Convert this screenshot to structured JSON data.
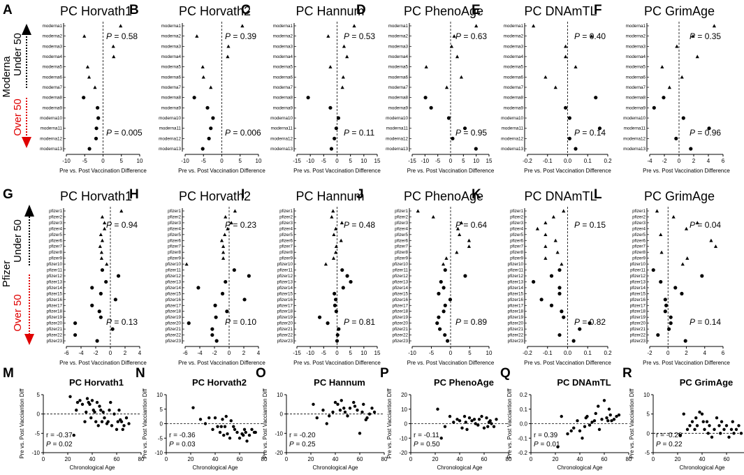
{
  "colors": {
    "over50": "#e00000",
    "under50": "#000000"
  },
  "rows": {
    "moderna": {
      "vaccine": "Moderna",
      "under": "Under 50",
      "over": "Over 50"
    },
    "pfizer": {
      "vaccine": "Pfizer",
      "under": "Under 50",
      "over": "Over 50"
    }
  },
  "xlabel": "Pre vs. Post Vaccination Difference",
  "scatter_xlabel": "Chronological Age",
  "scatter_ylabel": "Pre vs. Post Vacciantion Diff",
  "moderna_categories": [
    "moderna1",
    "moderna2",
    "moderna3",
    "moderna4",
    "moderna5",
    "moderna6",
    "moderna7",
    "moderna8",
    "moderna9",
    "moderna10",
    "moderna11",
    "moderna12",
    "moderna13"
  ],
  "pfizer_categories": [
    "pfizer1",
    "pfizer2",
    "pfizer3",
    "pfizer4",
    "pfizer5",
    "pfizer6",
    "pfizer7",
    "pfizer8",
    "pfizer9",
    "pfizer10",
    "pfizer11",
    "pfizer12",
    "pfizer13",
    "pfizer14",
    "pfizer15",
    "pfizer16",
    "pfizer17",
    "pfizer18",
    "pfizer19",
    "pfizer20",
    "pfizer21",
    "pfizer22",
    "pfizer23"
  ],
  "chart_data": [
    {
      "type": "scatter",
      "panel": "A",
      "title": "PC Horvath1",
      "cohort": "moderna",
      "xlim": [
        -10,
        10
      ],
      "ticks": [
        -10,
        -5,
        0,
        5,
        10
      ],
      "values": [
        4.8,
        -5.1,
        2.8,
        2.9,
        -4.2,
        -3.8,
        -2.2,
        -5.3,
        -1.5,
        -1.3,
        -1.8,
        -1.9,
        -3.7
      ],
      "p_under": "= 0.58",
      "p_over": "= 0.005"
    },
    {
      "type": "scatter",
      "panel": "B",
      "title": "PC Horvath2",
      "cohort": "moderna",
      "xlim": [
        -10,
        10
      ],
      "ticks": [
        -10,
        -5,
        0,
        5,
        10
      ],
      "values": [
        5.6,
        -6.8,
        1.8,
        1.6,
        -5.2,
        -5,
        -3,
        -7.5,
        -3.9,
        -2.4,
        -3,
        -3.5,
        -5.2
      ],
      "p_under": "= 0.39",
      "p_over": "= 0.006"
    },
    {
      "type": "scatter",
      "panel": "C",
      "title": "PC Hannum",
      "cohort": "moderna",
      "xlim": [
        -15,
        15
      ],
      "ticks": [
        -15,
        -10,
        -5,
        0,
        5,
        10,
        15
      ],
      "values": [
        6.4,
        -3.3,
        2.6,
        3.7,
        -2.5,
        2.3,
        2,
        -10.8,
        -2.5,
        0.5,
        -0.3,
        -1,
        -2.1
      ],
      "p_under": "= 0.53",
      "p_over": "= 0.11"
    },
    {
      "type": "scatter",
      "panel": "D",
      "title": "PC PhenoAge",
      "cohort": "moderna",
      "xlim": [
        -15,
        15
      ],
      "ticks": [
        -15,
        -10,
        -5,
        0,
        5,
        10,
        15
      ],
      "values": [
        10,
        1.4,
        0.4,
        2.6,
        -9.5,
        4.2,
        -1.5,
        -9.8,
        -7.6,
        -0.7,
        5.6,
        0.8,
        9.9
      ],
      "p_under": "= 0.63",
      "p_over": "= 0.95"
    },
    {
      "type": "scatter",
      "panel": "E",
      "title": "PC DNAmTL",
      "cohort": "moderna",
      "xlim": [
        -0.2,
        0.2
      ],
      "ticks": [
        -0.2,
        -0.1,
        0.0,
        0.1,
        0.2
      ],
      "values": [
        -0.17,
        0.12,
        -0.01,
        -0.01,
        0.04,
        -0.11,
        -0.06,
        0.14,
        -0.01,
        0.01,
        0.16,
        0.01,
        0.04
      ],
      "p_under": "= 0.40",
      "p_over": "= 0.14"
    },
    {
      "type": "scatter",
      "panel": "F",
      "title": "PC GrimAge",
      "cohort": "moderna",
      "xlim": [
        -4,
        6
      ],
      "ticks": [
        -4,
        -2,
        0,
        2,
        4,
        6
      ],
      "values": [
        4.8,
        1.9,
        -0.3,
        2.5,
        -2.3,
        0.4,
        -1.3,
        -2.1,
        -3.4,
        0.6,
        4.1,
        -0.4,
        1.6
      ],
      "p_under": "= 0.35",
      "p_over": "= 0.96"
    },
    {
      "type": "scatter",
      "panel": "G",
      "title": "PC Horvath1",
      "cohort": "pfizer",
      "xlim": [
        -6,
        4
      ],
      "ticks": [
        -6,
        -4,
        -2,
        0,
        2,
        4
      ],
      "values": [
        1.5,
        -1.1,
        -0.8,
        -0.8,
        -1.3,
        -1.1,
        -1.4,
        -1.2,
        -1.2,
        -0.5,
        -1.1,
        1.1,
        -0.6,
        -2.5,
        -1.3,
        0.7,
        -2.5,
        -1.5,
        -1.3,
        -4.8,
        0.3,
        -4.8,
        -1.8
      ],
      "p_under": "= 0.94",
      "p_over": "= 0.13"
    },
    {
      "type": "scatter",
      "panel": "H",
      "title": "PC Horvath2",
      "cohort": "pfizer",
      "xlim": [
        -6,
        4
      ],
      "ticks": [
        -6,
        -4,
        -2,
        0,
        2,
        4
      ],
      "values": [
        0.8,
        -0.5,
        0.3,
        -0.2,
        -0.6,
        -1,
        -0.8,
        -0.8,
        -0.8,
        -5.8,
        0.7,
        2.7,
        -0.5,
        -4.2,
        -0.9,
        2.1,
        -1.9,
        -0.3,
        -1.8,
        -5.5,
        -2.3,
        -2.3,
        -1.7
      ],
      "p_under": "= 0.23",
      "p_over": "= 0.10"
    },
    {
      "type": "scatter",
      "panel": "I",
      "title": "PC Hannum",
      "cohort": "pfizer",
      "xlim": [
        -15,
        15
      ],
      "ticks": [
        -15,
        -10,
        -5,
        0,
        5,
        10,
        15
      ],
      "values": [
        -1.5,
        -2,
        1.8,
        -0.5,
        -1.2,
        1.5,
        -0.3,
        -0.5,
        -1.3,
        -4.2,
        1.9,
        3.8,
        5.1,
        2.3,
        -1,
        -0.5,
        -0.8,
        -0.3,
        -6.5,
        -3.5,
        0.6,
        0.2,
        0
      ],
      "p_under": "= 0.48",
      "p_over": "= 0.81"
    },
    {
      "type": "scatter",
      "panel": "J",
      "title": "PC PhenoAge",
      "cohort": "pfizer",
      "xlim": [
        -10,
        10
      ],
      "ticks": [
        -10,
        -5,
        0,
        5,
        10
      ],
      "values": [
        -8.5,
        -4.5,
        2.8,
        1.9,
        2.3,
        4.8,
        4.8,
        1.6,
        -1.1,
        -1.9,
        -1.4,
        3.8,
        -2.5,
        -1.8,
        -3.1,
        -0.1,
        -1.4,
        -1.8,
        -3.1,
        -3.5,
        -2.8,
        -1.5,
        -0.8
      ],
      "p_under": "= 0.64",
      "p_over": "= 0.89"
    },
    {
      "type": "scatter",
      "panel": "K",
      "title": "PC DNAmTL",
      "cohort": "pfizer",
      "xlim": [
        -0.2,
        0.2
      ],
      "ticks": [
        -0.2,
        -0.1,
        0.0,
        0.1,
        0.2
      ],
      "values": [
        -0.02,
        -0.07,
        -0.11,
        -0.15,
        -0.11,
        -0.06,
        -0.11,
        -0.05,
        -0.11,
        -0.03,
        -0.04,
        -0.08,
        -0.17,
        -0.04,
        -0.04,
        -0.13,
        -0.08,
        -0.03,
        -0.02,
        0.11,
        0.06,
        -0.04,
        0.03
      ],
      "p_under": "= 0.15",
      "p_over": "= 0.82"
    },
    {
      "type": "scatter",
      "panel": "L",
      "title": "PC GrimAge",
      "cohort": "pfizer",
      "xlim": [
        -2,
        6
      ],
      "ticks": [
        -2,
        0,
        2,
        4,
        6
      ],
      "values": [
        -1.2,
        0.6,
        3.2,
        2,
        -0.8,
        4.7,
        5.2,
        -0.7,
        2.1,
        1.6,
        -1.6,
        3.7,
        -0.8,
        0.8,
        1.5,
        -0.3,
        -0.2,
        -0.3,
        0.3,
        0.3,
        0.1,
        -1.1,
        1.9
      ],
      "p_under": "= 0.04",
      "p_over": "= 0.14"
    },
    {
      "type": "scatter",
      "panel": "M",
      "title": "PC Horvath1",
      "xlim": [
        0,
        80
      ],
      "ylim": [
        -10,
        5
      ],
      "xticks": [
        0,
        20,
        40,
        60,
        80
      ],
      "yticks": [
        -10,
        -5,
        0,
        5
      ],
      "r": "r = -0.37",
      "p": "= 0.02",
      "x": [
        22,
        25,
        27,
        28,
        30,
        32,
        34,
        35,
        36,
        37,
        38,
        39,
        40,
        41,
        42,
        43,
        44,
        45,
        46,
        47,
        48,
        49,
        50,
        52,
        53,
        54,
        55,
        56,
        58,
        60,
        61,
        62,
        63,
        64,
        65,
        66,
        68,
        70
      ],
      "y": [
        4.5,
        -5.5,
        1,
        3,
        3.5,
        2.5,
        -2,
        0.5,
        4,
        3,
        2.5,
        -1,
        3.5,
        1,
        0.5,
        -2,
        3,
        -3,
        2,
        1,
        -2,
        0.5,
        -1,
        -2.5,
        -2,
        1,
        3,
        -3,
        0,
        -4,
        -2,
        1,
        -1.5,
        -2,
        -4,
        -3,
        -1,
        -2.5
      ]
    },
    {
      "type": "scatter",
      "panel": "N",
      "title": "PC Horvath2",
      "xlim": [
        0,
        80
      ],
      "ylim": [
        -10,
        10
      ],
      "xticks": [
        0,
        20,
        40,
        60,
        80
      ],
      "yticks": [
        -10,
        -5,
        0,
        5,
        10
      ],
      "r": "r = -0.36",
      "p": "= 0.03",
      "x": [
        22,
        28,
        32,
        35,
        38,
        40,
        42,
        44,
        45,
        46,
        47,
        48,
        49,
        50,
        52,
        53,
        55,
        56,
        58,
        60,
        62,
        63,
        64,
        65,
        66,
        68,
        70,
        72,
        73
      ],
      "y": [
        5.5,
        1.5,
        0,
        2,
        -2,
        2,
        -1,
        -3,
        -1,
        1.5,
        -4,
        -1,
        2.5,
        -3.5,
        -5,
        1,
        -1,
        -2,
        -3,
        -5,
        -3.5,
        -4,
        -2,
        -3,
        -6,
        -4,
        -2,
        -3,
        -3
      ]
    },
    {
      "type": "scatter",
      "panel": "O",
      "title": "PC Hannum",
      "xlim": [
        0,
        80
      ],
      "ylim": [
        -20,
        10
      ],
      "xticks": [
        0,
        20,
        40,
        60,
        80
      ],
      "yticks": [
        -20,
        -10,
        0,
        10
      ],
      "r": "r = -0.20",
      "p": "= 0.25",
      "x": [
        22,
        25,
        30,
        33,
        35,
        38,
        40,
        42,
        44,
        45,
        47,
        48,
        50,
        52,
        55,
        56,
        58,
        60,
        62,
        63,
        65,
        66,
        68,
        70,
        72
      ],
      "y": [
        5,
        -2,
        2,
        -5,
        -1,
        1,
        6,
        5,
        2,
        7,
        3,
        1,
        -1,
        3,
        6,
        4,
        2,
        -10,
        1,
        5,
        -3,
        -2,
        0,
        3,
        1
      ]
    },
    {
      "type": "scatter",
      "panel": "P",
      "title": "PC PhenoAge",
      "xlim": [
        0,
        80
      ],
      "ylim": [
        -20,
        20
      ],
      "xticks": [
        0,
        20,
        40,
        60,
        80
      ],
      "yticks": [
        -20,
        -10,
        0,
        10,
        20
      ],
      "r": "r = -0.11",
      "p": "= 0.50",
      "x": [
        22,
        25,
        28,
        32,
        35,
        38,
        40,
        42,
        44,
        45,
        46,
        48,
        50,
        52,
        53,
        55,
        56,
        58,
        60,
        62,
        63,
        64,
        65,
        66,
        68,
        70
      ],
      "y": [
        10,
        -10,
        -2,
        5,
        1,
        3,
        2,
        -3,
        5,
        1,
        -4,
        4,
        2,
        3,
        0,
        -1,
        3,
        5,
        -3,
        4,
        -2,
        1,
        2,
        0,
        -2,
        3
      ]
    },
    {
      "type": "scatter",
      "panel": "Q",
      "title": "PC DNAmTL",
      "xlim": [
        0,
        80
      ],
      "ylim": [
        -0.2,
        0.2
      ],
      "xticks": [
        0,
        20,
        40,
        60,
        80
      ],
      "yticks": [
        -0.2,
        -0.1,
        0.0,
        0.1,
        0.2
      ],
      "r": "r = 0.39",
      "p": "= 0.01",
      "x": [
        22,
        25,
        30,
        33,
        35,
        38,
        40,
        42,
        44,
        45,
        46,
        48,
        50,
        52,
        53,
        55,
        56,
        58,
        60,
        62,
        63,
        64,
        65,
        66,
        68,
        70,
        72
      ],
      "y": [
        -0.16,
        0.05,
        -0.07,
        -0.05,
        -0.03,
        0.02,
        -0.05,
        -0.1,
        -0.02,
        0.04,
        0.05,
        -0.01,
        0.01,
        0.02,
        0.07,
        0.12,
        -0.04,
        0.03,
        0.16,
        0.04,
        0.02,
        0.1,
        0.06,
        0.02,
        0.03,
        0.05,
        0.06
      ]
    },
    {
      "type": "scatter",
      "panel": "R",
      "title": "PC GrimAge",
      "xlim": [
        0,
        80
      ],
      "ylim": [
        -5,
        10
      ],
      "xticks": [
        0,
        20,
        40,
        60,
        80
      ],
      "yticks": [
        -5,
        0,
        5,
        10
      ],
      "r": "r = -0.20",
      "p": "= 0.22",
      "x": [
        22,
        25,
        28,
        30,
        32,
        34,
        35,
        36,
        38,
        40,
        41,
        42,
        44,
        45,
        46,
        48,
        50,
        52,
        54,
        55,
        56,
        58,
        60,
        62,
        64,
        65,
        66,
        68,
        70,
        72
      ],
      "y": [
        -0.5,
        5,
        1,
        2,
        3,
        1,
        4,
        2,
        5.5,
        5,
        3,
        1,
        3,
        0,
        2,
        -1,
        1,
        4,
        2,
        0,
        3,
        1,
        2,
        -1,
        1,
        3,
        0,
        1,
        2,
        0
      ]
    }
  ]
}
